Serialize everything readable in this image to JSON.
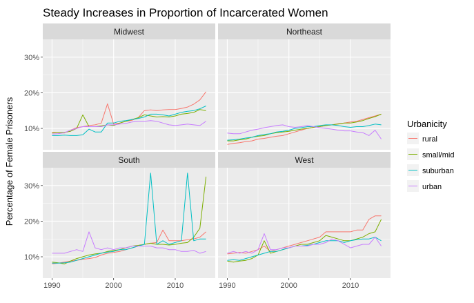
{
  "chart_data": {
    "type": "line",
    "title": "Steady Increases in Proportion of Incarcerated Women",
    "xlabel": "",
    "ylabel": "Percentage of Female Prisoners",
    "x_ticks": [
      1990,
      2000,
      2010
    ],
    "y_ticks": [
      {
        "value": 10,
        "label": "10%"
      },
      {
        "value": 20,
        "label": "20%"
      },
      {
        "value": 30,
        "label": "30%"
      }
    ],
    "xlim": [
      1988.5,
      2016.5
    ],
    "ylim": [
      4,
      35
    ],
    "grid": true,
    "legend": {
      "title": "Urbanicity",
      "position": "right",
      "entries": [
        {
          "name": "rural",
          "color": "#F8766D"
        },
        {
          "name": "small/mid",
          "color": "#7CAE00"
        },
        {
          "name": "suburban",
          "color": "#00BFC4"
        },
        {
          "name": "urban",
          "color": "#C77CFF"
        }
      ]
    },
    "x": [
      1990,
      1991,
      1992,
      1993,
      1994,
      1995,
      1996,
      1997,
      1998,
      1999,
      2000,
      2001,
      2002,
      2003,
      2004,
      2005,
      2006,
      2007,
      2008,
      2009,
      2010,
      2011,
      2012,
      2013,
      2014,
      2015
    ],
    "panels": [
      {
        "name": "Midwest",
        "series": [
          {
            "name": "rural",
            "values": [
              8.9,
              8.8,
              8.7,
              9.5,
              10.2,
              10.5,
              10.8,
              11.0,
              11.5,
              16.9,
              11.2,
              11.5,
              12.0,
              12.3,
              13.0,
              15.0,
              15.2,
              15.0,
              15.2,
              15.3,
              15.3,
              15.6,
              16.0,
              16.8,
              18.0,
              20.3
            ]
          },
          {
            "name": "small/mid",
            "values": [
              8.7,
              8.8,
              8.9,
              9.2,
              10.0,
              13.8,
              10.5,
              10.5,
              10.7,
              11.0,
              10.8,
              11.5,
              12.0,
              12.5,
              13.0,
              13.8,
              13.5,
              13.2,
              13.3,
              13.2,
              13.5,
              14.0,
              14.2,
              14.5,
              15.3,
              15.0
            ]
          },
          {
            "name": "suburban",
            "values": [
              8.0,
              8.0,
              8.1,
              8.0,
              8.0,
              8.2,
              9.8,
              9.0,
              9.0,
              11.5,
              11.5,
              12.0,
              12.2,
              12.5,
              12.8,
              13.2,
              14.0,
              14.0,
              13.8,
              13.5,
              14.0,
              14.5,
              14.8,
              15.0,
              15.5,
              16.3
            ]
          },
          {
            "name": "urban",
            "values": [
              8.4,
              8.5,
              8.8,
              9.5,
              10.0,
              10.5,
              10.5,
              10.5,
              10.5,
              11.0,
              11.0,
              11.2,
              11.4,
              11.8,
              12.0,
              12.0,
              12.2,
              12.0,
              11.5,
              11.0,
              10.8,
              11.0,
              11.2,
              11.0,
              10.8,
              12.0
            ]
          }
        ]
      },
      {
        "name": "Northeast",
        "series": [
          {
            "name": "rural",
            "values": [
              5.5,
              5.8,
              6.0,
              6.3,
              6.5,
              7.0,
              7.2,
              7.5,
              7.8,
              8.0,
              8.5,
              9.0,
              9.5,
              10.0,
              10.3,
              10.5,
              10.8,
              11.0,
              11.3,
              11.5,
              11.8,
              12.0,
              12.5,
              13.0,
              13.5,
              14.0
            ]
          },
          {
            "name": "small/mid",
            "values": [
              6.5,
              6.5,
              6.8,
              7.0,
              7.5,
              7.8,
              8.0,
              8.5,
              8.8,
              9.0,
              9.2,
              9.5,
              9.8,
              10.0,
              10.3,
              10.5,
              10.8,
              11.0,
              11.2,
              11.5,
              11.5,
              11.8,
              12.2,
              12.8,
              13.3,
              14.0
            ]
          },
          {
            "name": "suburban",
            "values": [
              6.7,
              6.8,
              7.0,
              7.3,
              7.5,
              8.0,
              8.3,
              8.5,
              9.0,
              9.2,
              9.5,
              10.0,
              10.2,
              10.5,
              10.5,
              10.8,
              11.0,
              11.0,
              10.8,
              10.5,
              10.3,
              10.5,
              10.5,
              10.8,
              11.2,
              11.0
            ]
          },
          {
            "name": "urban",
            "values": [
              8.7,
              8.5,
              8.5,
              9.0,
              9.5,
              9.8,
              10.2,
              10.5,
              10.8,
              11.0,
              10.5,
              10.3,
              10.5,
              10.8,
              10.5,
              10.2,
              10.0,
              9.8,
              9.5,
              9.3,
              9.3,
              9.0,
              8.8,
              8.0,
              9.5,
              7.0
            ]
          }
        ]
      },
      {
        "name": "South",
        "series": [
          {
            "name": "rural",
            "values": [
              8.0,
              8.2,
              8.5,
              8.8,
              9.0,
              9.3,
              9.5,
              9.8,
              10.5,
              11.0,
              11.2,
              11.5,
              12.0,
              12.5,
              13.0,
              13.5,
              13.8,
              14.0,
              17.5,
              14.5,
              14.5,
              14.5,
              14.8,
              15.0,
              15.5,
              17.0
            ]
          },
          {
            "name": "small/mid",
            "values": [
              8.5,
              8.3,
              8.0,
              8.8,
              9.5,
              10.0,
              10.5,
              10.8,
              11.0,
              11.5,
              11.8,
              12.0,
              12.5,
              13.0,
              13.2,
              13.5,
              13.8,
              13.5,
              13.5,
              13.3,
              13.5,
              13.8,
              14.0,
              15.5,
              18.0,
              32.5
            ]
          },
          {
            "name": "suburban",
            "values": [
              8.2,
              8.2,
              8.3,
              8.5,
              9.0,
              9.5,
              10.0,
              10.5,
              11.0,
              11.3,
              11.5,
              12.0,
              12.0,
              12.5,
              13.0,
              13.5,
              33.5,
              13.5,
              14.5,
              13.5,
              14.0,
              14.5,
              33.5,
              14.5,
              15.0,
              15.0
            ]
          },
          {
            "name": "urban",
            "values": [
              11.0,
              11.0,
              11.0,
              11.5,
              12.0,
              11.5,
              17.0,
              12.5,
              12.0,
              12.5,
              12.0,
              12.5,
              12.5,
              13.0,
              13.0,
              13.0,
              13.0,
              12.5,
              12.5,
              12.0,
              12.0,
              11.5,
              11.5,
              11.8,
              11.0,
              11.5
            ]
          }
        ]
      },
      {
        "name": "West",
        "series": [
          {
            "name": "rural",
            "values": [
              10.8,
              11.0,
              11.2,
              11.0,
              11.5,
              12.0,
              13.0,
              11.5,
              12.0,
              12.5,
              13.0,
              13.5,
              14.0,
              14.5,
              15.0,
              15.5,
              17.0,
              17.0,
              17.0,
              17.0,
              17.0,
              17.5,
              17.5,
              20.5,
              21.5,
              21.5
            ]
          },
          {
            "name": "small/mid",
            "values": [
              8.8,
              8.5,
              8.8,
              9.0,
              9.5,
              10.5,
              14.5,
              11.0,
              11.5,
              12.0,
              12.5,
              13.0,
              13.5,
              13.5,
              14.0,
              14.5,
              16.0,
              15.5,
              15.0,
              14.5,
              14.5,
              15.0,
              15.5,
              16.5,
              17.0,
              20.5
            ]
          },
          {
            "name": "suburban",
            "values": [
              9.0,
              9.2,
              9.0,
              9.5,
              10.0,
              10.5,
              11.0,
              11.5,
              11.5,
              12.0,
              12.5,
              13.0,
              13.0,
              13.2,
              13.5,
              14.0,
              14.5,
              14.5,
              14.5,
              14.0,
              14.5,
              14.8,
              15.0,
              15.0,
              15.5,
              14.5
            ]
          },
          {
            "name": "urban",
            "values": [
              11.0,
              11.5,
              11.0,
              11.5,
              11.0,
              12.0,
              16.5,
              12.0,
              12.0,
              12.5,
              12.5,
              13.0,
              13.0,
              13.0,
              13.5,
              13.5,
              14.0,
              15.0,
              14.5,
              13.5,
              12.5,
              13.0,
              13.5,
              13.5,
              15.5,
              13.0
            ]
          }
        ]
      }
    ]
  }
}
